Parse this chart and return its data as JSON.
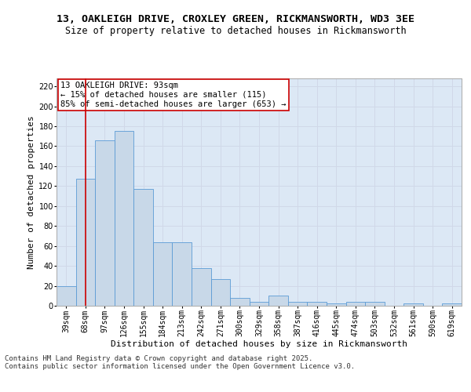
{
  "title_line1": "13, OAKLEIGH DRIVE, CROXLEY GREEN, RICKMANSWORTH, WD3 3EE",
  "title_line2": "Size of property relative to detached houses in Rickmansworth",
  "xlabel": "Distribution of detached houses by size in Rickmansworth",
  "ylabel": "Number of detached properties",
  "categories": [
    "39sqm",
    "68sqm",
    "97sqm",
    "126sqm",
    "155sqm",
    "184sqm",
    "213sqm",
    "242sqm",
    "271sqm",
    "300sqm",
    "329sqm",
    "358sqm",
    "387sqm",
    "416sqm",
    "445sqm",
    "474sqm",
    "503sqm",
    "532sqm",
    "561sqm",
    "590sqm",
    "619sqm"
  ],
  "values": [
    20,
    127,
    166,
    175,
    117,
    64,
    64,
    38,
    27,
    8,
    4,
    10,
    4,
    4,
    2,
    4,
    4,
    0,
    2,
    0,
    2
  ],
  "bar_color": "#c8d8e8",
  "bar_edge_color": "#5b9bd5",
  "grid_color": "#d0d8e8",
  "background_color": "#dce8f5",
  "annotation_box_color": "#ffffff",
  "annotation_border_color": "#cc0000",
  "vline_color": "#cc0000",
  "vline_x_index": 1,
  "annotation_title": "13 OAKLEIGH DRIVE: 93sqm",
  "annotation_line1": "← 15% of detached houses are smaller (115)",
  "annotation_line2": "85% of semi-detached houses are larger (653) →",
  "footer_line1": "Contains HM Land Registry data © Crown copyright and database right 2025.",
  "footer_line2": "Contains public sector information licensed under the Open Government Licence v3.0.",
  "ylim": [
    0,
    228
  ],
  "yticks": [
    0,
    20,
    40,
    60,
    80,
    100,
    120,
    140,
    160,
    180,
    200,
    220
  ],
  "title_fontsize": 9.5,
  "subtitle_fontsize": 8.5,
  "axis_label_fontsize": 8,
  "tick_fontsize": 7,
  "annotation_fontsize": 7.5,
  "footer_fontsize": 6.5
}
